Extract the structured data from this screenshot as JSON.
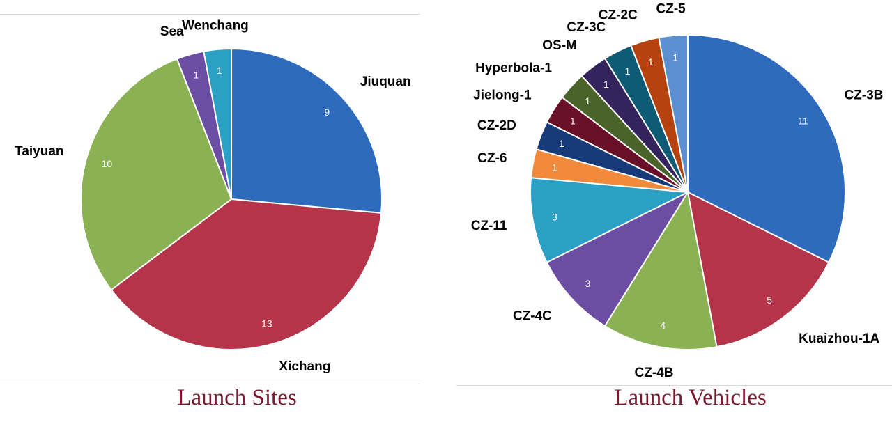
{
  "chart_data": [
    {
      "type": "pie",
      "title": "Launch Sites",
      "categories": [
        "Jiuquan",
        "Xichang",
        "Taiyuan",
        "Sea",
        "Wenchang"
      ],
      "values": [
        9,
        13,
        10,
        1,
        1
      ],
      "colors": [
        "#2e6bbd",
        "#b5344a",
        "#8bb155",
        "#6b4ea3",
        "#2b9fc4"
      ],
      "start": "12 o'clock, clockwise",
      "legend": "none (category labels outside slices, values inside)"
    },
    {
      "type": "pie",
      "title": "Launch Vehicles",
      "categories": [
        "CZ-3B",
        "Kuaizhou-1A",
        "CZ-4B",
        "CZ-4C",
        "CZ-11",
        "CZ-6",
        "CZ-2D",
        "Jielong-1",
        "Hyperbola-1",
        "OS-M",
        "CZ-3C",
        "CZ-2C",
        "CZ-5"
      ],
      "values": [
        11,
        5,
        4,
        3,
        3,
        1,
        1,
        1,
        1,
        1,
        1,
        1,
        1
      ],
      "colors": [
        "#2e6bbd",
        "#b5344a",
        "#8bb155",
        "#6b4ea3",
        "#2b9fc4",
        "#f28a3c",
        "#173a7a",
        "#6a0f28",
        "#4a6328",
        "#34245e",
        "#0f5a75",
        "#b5420f",
        "#5b8fd1"
      ],
      "start": "12 o'clock, clockwise",
      "legend": "none (category labels outside slices, values inside)"
    }
  ]
}
